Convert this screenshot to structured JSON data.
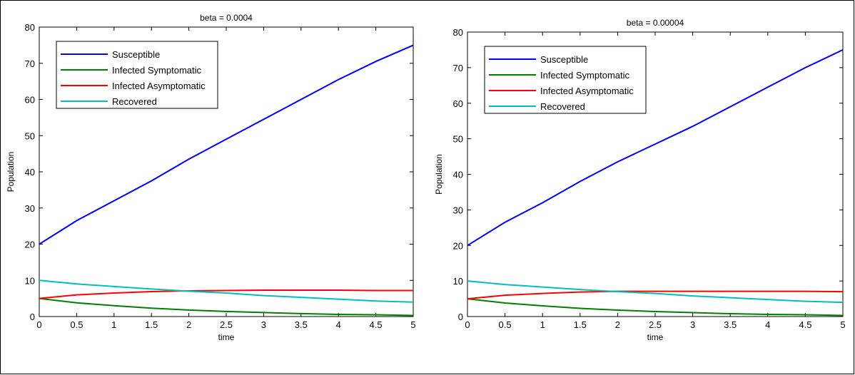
{
  "chart_data": [
    {
      "type": "line",
      "title": "beta = 0.0004",
      "xlabel": "time",
      "ylabel": "Population",
      "xlim": [
        0,
        5
      ],
      "ylim": [
        0,
        80
      ],
      "xticks": [
        "0",
        "0.5",
        "1",
        "1.5",
        "2",
        "2.5",
        "3",
        "3.5",
        "4",
        "4.5",
        "5"
      ],
      "yticks": [
        "0",
        "10",
        "20",
        "30",
        "40",
        "50",
        "60",
        "70",
        "80"
      ],
      "grid": false,
      "legend_position": "top-left",
      "x": [
        0,
        0.5,
        1,
        1.5,
        2,
        2.5,
        3,
        3.5,
        4,
        4.5,
        5
      ],
      "series": [
        {
          "name": "Susceptible",
          "color": "#0000ff",
          "values": [
            20,
            26.5,
            32,
            37.5,
            43.5,
            49,
            54.5,
            60,
            65.5,
            70.5,
            75
          ]
        },
        {
          "name": "Infected Symptomatic",
          "color": "#008000",
          "values": [
            5,
            3.8,
            3,
            2.3,
            1.8,
            1.4,
            1.1,
            0.8,
            0.6,
            0.5,
            0.3
          ]
        },
        {
          "name": "Infected Asymptomatic",
          "color": "#ff0000",
          "values": [
            5,
            6,
            6.5,
            6.9,
            7.1,
            7.2,
            7.3,
            7.3,
            7.3,
            7.2,
            7.2
          ]
        },
        {
          "name": "Recovered",
          "color": "#00bfbf",
          "values": [
            10,
            9,
            8.3,
            7.6,
            7,
            6.5,
            5.8,
            5.3,
            4.8,
            4.3,
            4
          ]
        }
      ]
    },
    {
      "type": "line",
      "title": "beta = 0.00004",
      "xlabel": "time",
      "ylabel": "Population",
      "xlim": [
        0,
        5
      ],
      "ylim": [
        0,
        80
      ],
      "xticks": [
        "0",
        "0.5",
        "1",
        "1.5",
        "2",
        "2.5",
        "3",
        "3.5",
        "4",
        "4.5",
        "5"
      ],
      "yticks": [
        "0",
        "10",
        "20",
        "30",
        "40",
        "50",
        "60",
        "70",
        "80"
      ],
      "grid": false,
      "legend_position": "top-left",
      "x": [
        0,
        0.5,
        1,
        1.5,
        2,
        2.5,
        3,
        3.5,
        4,
        4.5,
        5
      ],
      "series": [
        {
          "name": "Susceptible",
          "color": "#0000ff",
          "values": [
            20,
            26.5,
            32,
            38,
            43.5,
            48.5,
            53.5,
            59,
            64.5,
            70,
            75
          ]
        },
        {
          "name": "Infected Symptomatic",
          "color": "#008000",
          "values": [
            5,
            3.8,
            3,
            2.3,
            1.8,
            1.4,
            1.1,
            0.8,
            0.6,
            0.5,
            0.3
          ]
        },
        {
          "name": "Infected Asymptomatic",
          "color": "#ff0000",
          "values": [
            5,
            6,
            6.5,
            6.9,
            7.1,
            7.1,
            7.1,
            7.1,
            7.1,
            7.1,
            7
          ]
        },
        {
          "name": "Recovered",
          "color": "#00bfbf",
          "values": [
            10,
            9,
            8.3,
            7.6,
            7,
            6.5,
            5.8,
            5.3,
            4.8,
            4.3,
            4
          ]
        }
      ]
    }
  ]
}
